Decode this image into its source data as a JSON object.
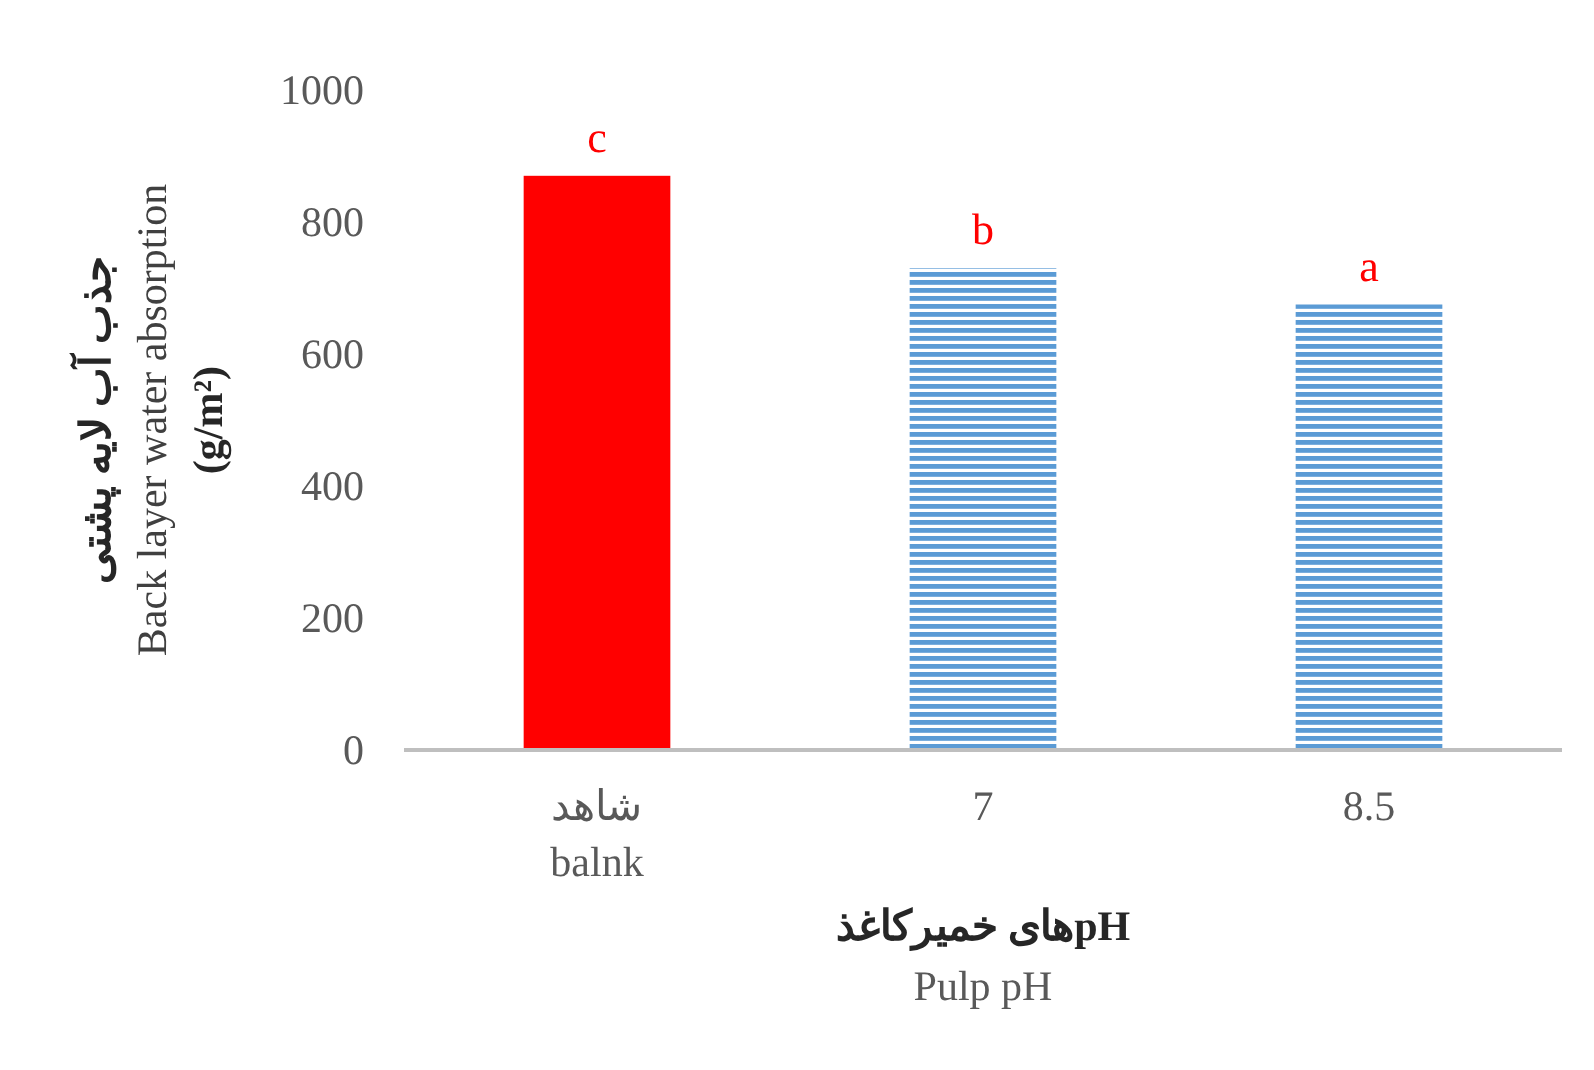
{
  "chart_data": {
    "type": "bar",
    "categories": [
      "شاهد\nbalnk",
      "7",
      "8.5"
    ],
    "values": [
      870,
      730,
      675
    ],
    "colors": [
      "#ff0000",
      "#5b9bd5",
      "#5b9bd5"
    ],
    "ylim": [
      0,
      1000
    ],
    "yticks": [
      0,
      200,
      400,
      600,
      800,
      1000
    ],
    "ylabel": "جذب آب لایه پشتی\nBack layer water absorption\n(g/m²)",
    "xlabel": "pHهای خمیرکاغذ\nPulp pH",
    "annotations": [
      {
        "text": "c",
        "x": "شاهد\nbalnk",
        "y": 870
      },
      {
        "text": "b",
        "x": "7",
        "y": 730
      },
      {
        "text": "a",
        "x": "8.5",
        "y": 675
      }
    ]
  }
}
